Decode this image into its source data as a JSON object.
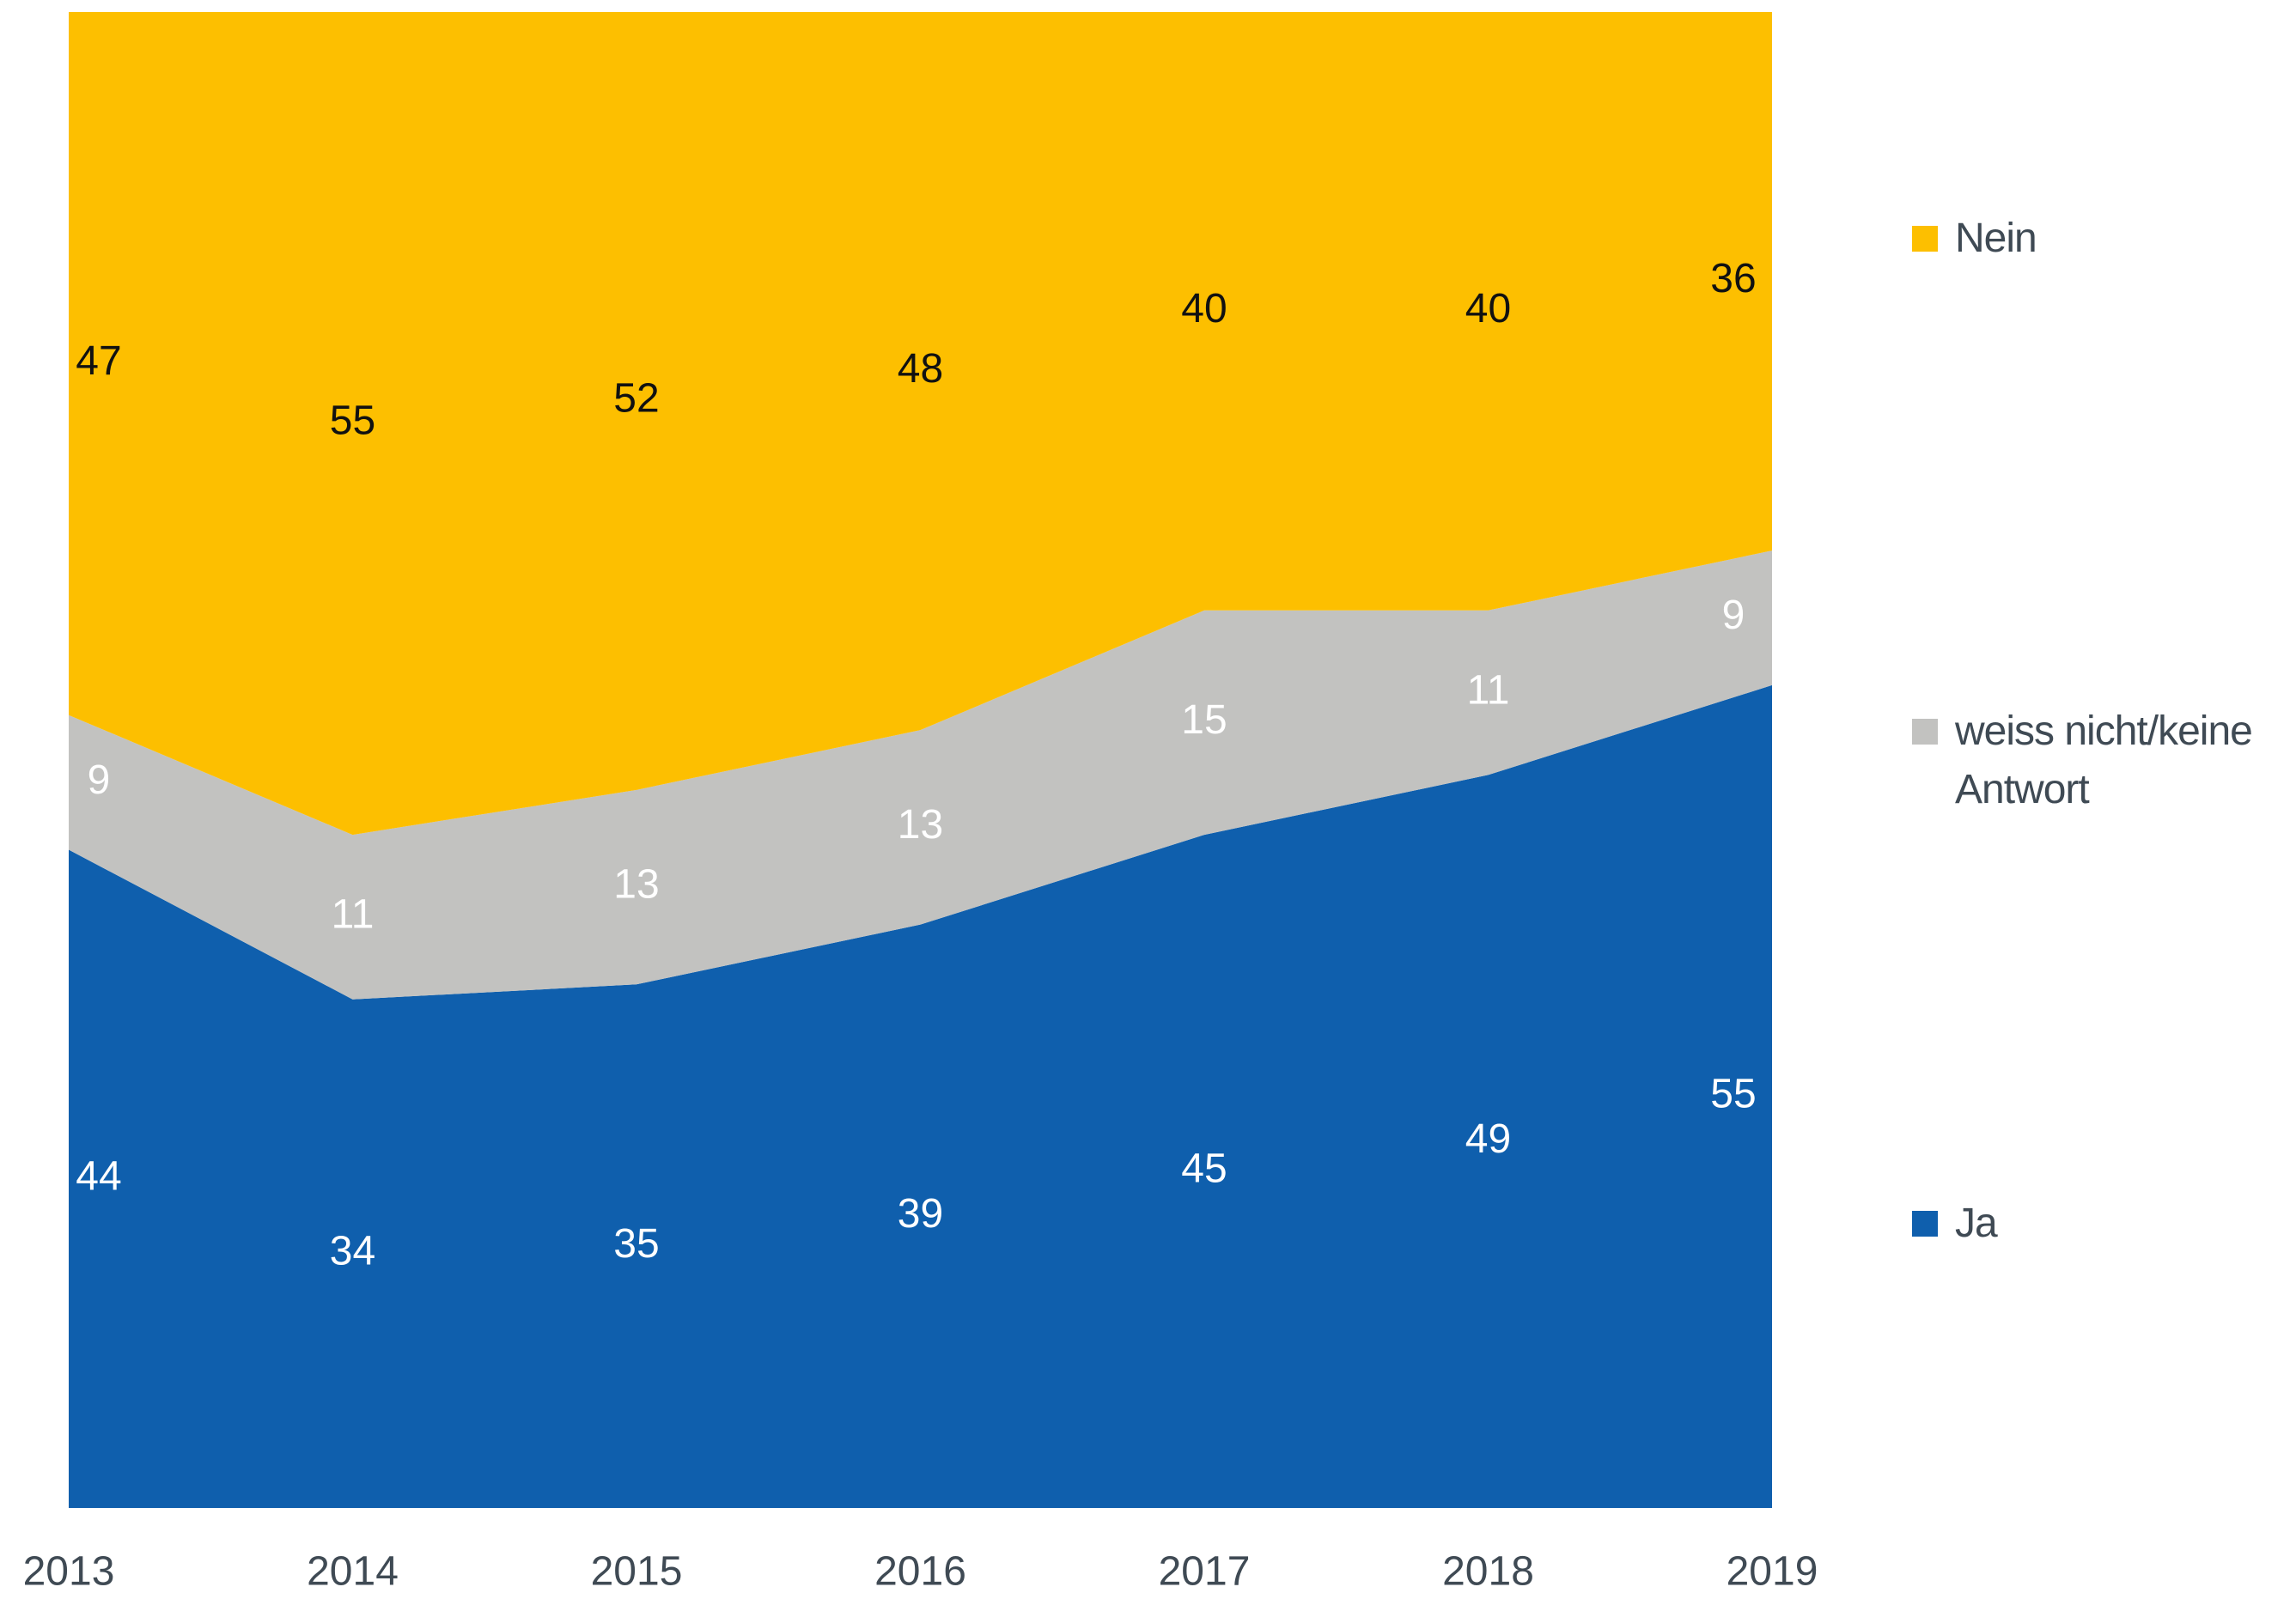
{
  "chart_data": {
    "type": "stacked-area",
    "categories": [
      "2013",
      "2014",
      "2015",
      "2016",
      "2017",
      "2018",
      "2019"
    ],
    "series": [
      {
        "name": "Ja",
        "color": "#0f5fad",
        "values": [
          44,
          34,
          35,
          39,
          45,
          49,
          55
        ]
      },
      {
        "name": "weiss nicht/keine Antwort",
        "color": "#c2c2c0",
        "values": [
          9,
          11,
          13,
          13,
          15,
          11,
          9
        ]
      },
      {
        "name": "Nein",
        "color": "#fdbf00",
        "values": [
          47,
          55,
          52,
          48,
          40,
          40,
          36
        ]
      }
    ]
  }
}
